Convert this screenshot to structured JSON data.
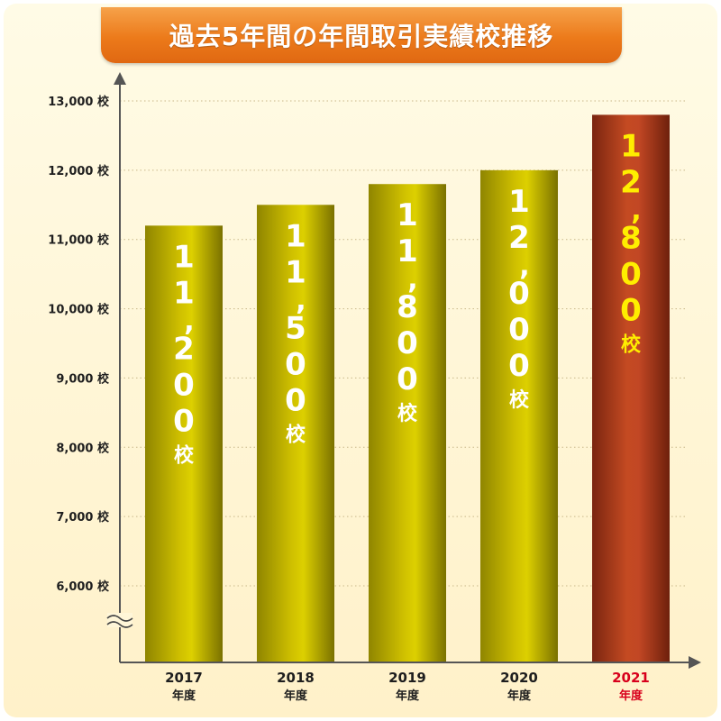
{
  "colors": {
    "normal_bar": "#cfc000",
    "highlight_bar": "#a83a1c",
    "normal_label": "#ffffff",
    "highlight_label": "#ffee00",
    "highlight_axis_label": "#d8001c",
    "title_banner": "#ec7a1a"
  },
  "chart_data": {
    "type": "bar",
    "title": "過去5年間の年間取引実績校推移",
    "categories": [
      "2017",
      "2018",
      "2019",
      "2020",
      "2021"
    ],
    "category_sublabel": "年度",
    "values": [
      11200,
      11500,
      11800,
      12000,
      12800
    ],
    "value_labels": [
      "11,200校",
      "11,500校",
      "11,800校",
      "12,000校",
      "12,800校"
    ],
    "highlight_index": 4,
    "y_ticks": [
      6000,
      7000,
      8000,
      9000,
      10000,
      11000,
      12000,
      13000
    ],
    "y_tick_labels": [
      "6,000 校",
      "7,000 校",
      "8,000 校",
      "9,000 校",
      "10,000 校",
      "11,000 校",
      "12,000 校",
      "13,000 校"
    ],
    "ylim": [
      6000,
      13000
    ],
    "axis_break": true,
    "grid": true,
    "grid_style": "dotted"
  }
}
